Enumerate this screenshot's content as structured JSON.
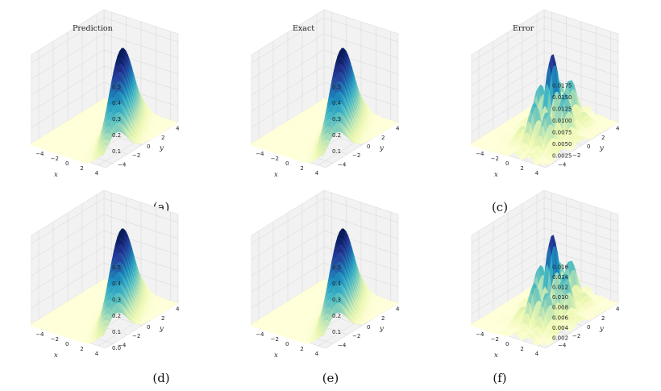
{
  "chart_data": [
    {
      "panel": "a",
      "type": "surface3d",
      "title": "Prediction",
      "caption": "(a)",
      "xlabel": "x",
      "ylabel": "y",
      "xticks": [
        "−4",
        "−2",
        "0",
        "2",
        "4"
      ],
      "yticks": [
        "−4",
        "−2",
        "0",
        "2",
        "4"
      ],
      "zticks": [
        "0.1",
        "0.2",
        "0.3",
        "0.4",
        "0.5"
      ],
      "zmax": 0.55,
      "kind": "field",
      "colormap": "YlGnBu"
    },
    {
      "panel": "b",
      "type": "surface3d",
      "title": "Exact",
      "caption": "(b)",
      "xlabel": "x",
      "ylabel": "y",
      "xticks": [
        "−4",
        "−2",
        "0",
        "2",
        "4"
      ],
      "yticks": [
        "−4",
        "−2",
        "0",
        "2",
        "4"
      ],
      "zticks": [
        "0.1",
        "0.2",
        "0.3",
        "0.4",
        "0.5"
      ],
      "zmax": 0.55,
      "kind": "field",
      "colormap": "YlGnBu"
    },
    {
      "panel": "c",
      "type": "surface3d",
      "title": "Error",
      "caption": "(c)",
      "xlabel": "x",
      "ylabel": "y",
      "xticks": [
        "−4",
        "−2",
        "0",
        "2",
        "4"
      ],
      "yticks": [
        "−4",
        "−2",
        "0",
        "2",
        "4"
      ],
      "zticks": [
        "0.0025",
        "0.0050",
        "0.0075",
        "0.0100",
        "0.0125",
        "0.0150",
        "0.0175"
      ],
      "zmax": 0.019,
      "kind": "error",
      "colormap": "YlGnBu"
    },
    {
      "panel": "d",
      "type": "surface3d",
      "title": "",
      "caption": "(d)",
      "xlabel": "x",
      "ylabel": "y",
      "xticks": [
        "−4",
        "−2",
        "0",
        "2",
        "4"
      ],
      "yticks": [
        "−4",
        "−2",
        "0",
        "2",
        "4"
      ],
      "zticks": [
        "0.0",
        "0.1",
        "0.2",
        "0.3",
        "0.4",
        "0.5"
      ],
      "zmax": 0.55,
      "kind": "field",
      "colormap": "YlGnBu"
    },
    {
      "panel": "e",
      "type": "surface3d",
      "title": "",
      "caption": "(e)",
      "xlabel": "x",
      "ylabel": "y",
      "xticks": [
        "−4",
        "−2",
        "0",
        "2",
        "4"
      ],
      "yticks": [
        "−4",
        "−2",
        "0",
        "2",
        "4"
      ],
      "zticks": [
        "0.1",
        "0.2",
        "0.3",
        "0.4",
        "0.5"
      ],
      "zmax": 0.55,
      "kind": "field",
      "colormap": "YlGnBu"
    },
    {
      "panel": "f",
      "type": "surface3d",
      "title": "",
      "caption": "(f)",
      "xlabel": "x",
      "ylabel": "y",
      "xticks": [
        "−4",
        "−2",
        "0",
        "2",
        "4"
      ],
      "yticks": [
        "−4",
        "−2",
        "0",
        "2",
        "4"
      ],
      "zticks": [
        "0.002",
        "0.004",
        "0.006",
        "0.008",
        "0.010",
        "0.012",
        "0.014",
        "0.016"
      ],
      "zmax": 0.0175,
      "kind": "error",
      "colormap": "YlGnBu"
    }
  ]
}
